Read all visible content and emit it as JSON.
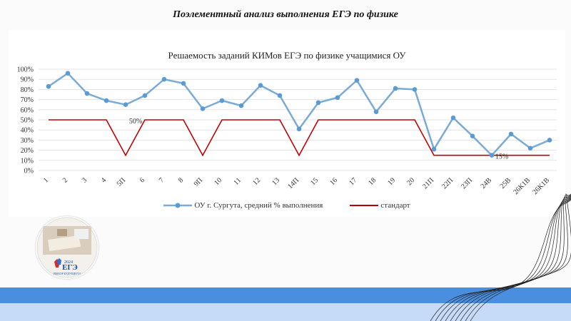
{
  "slide": {
    "title": "Поэлементный анализ выполнения ЕГЭ по физике"
  },
  "logo": {
    "year": "2024",
    "brand": "ЕГЭ",
    "tagline": "ВЫБОР БУДУЩЕГО!"
  },
  "colors": {
    "series_school": "#7aaad6",
    "series_school_marker": "#5b9bd5",
    "series_standard": "#c00000",
    "band_dark": "#4a8edf",
    "band_light": "#c5dbf7"
  },
  "chart_data": {
    "type": "line",
    "title": "Решаемость заданий КИМов ЕГЭ по физике учащимися ОУ",
    "xlabel": "",
    "ylabel": "",
    "ylim": [
      0,
      100
    ],
    "yticks": [
      "0%",
      "10%",
      "20%",
      "30%",
      "40%",
      "50%",
      "60%",
      "70%",
      "80%",
      "90%",
      "100%"
    ],
    "grid": true,
    "legend_position": "bottom",
    "categories": [
      "1",
      "2",
      "3",
      "4",
      "5П",
      "6",
      "7",
      "8",
      "9П",
      "10",
      "11",
      "12",
      "13",
      "14П",
      "15",
      "16",
      "17",
      "18",
      "19",
      "20",
      "21П",
      "22П",
      "23П",
      "24В",
      "25В",
      "26К1В",
      "26К1В"
    ],
    "series": [
      {
        "name": "ОУ г. Сургута, средний % выполнения",
        "values": [
          83,
          96,
          76,
          69,
          65,
          74,
          90,
          86,
          61,
          69,
          64,
          84,
          74,
          41,
          67,
          72,
          89,
          58,
          81,
          80,
          21,
          52,
          34,
          15,
          36,
          22,
          30
        ]
      },
      {
        "name": "стандарт",
        "values": [
          50,
          50,
          50,
          50,
          15,
          50,
          50,
          50,
          15,
          50,
          50,
          50,
          50,
          15,
          50,
          50,
          50,
          50,
          50,
          50,
          15,
          15,
          15,
          15,
          15,
          15,
          15
        ]
      }
    ],
    "annotations": [
      {
        "text": "50%",
        "category_index": 4,
        "value": 50
      },
      {
        "text": "15%",
        "category_index": 23,
        "value": 15
      }
    ]
  }
}
